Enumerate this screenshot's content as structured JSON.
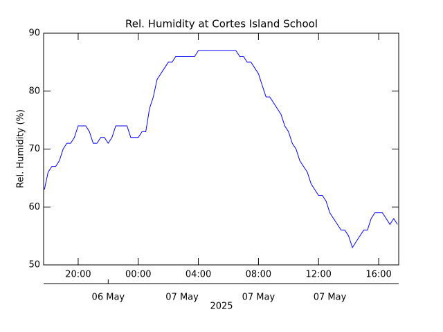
{
  "chart_data": {
    "type": "line",
    "title": "Rel. Humidity at Cortes Island School",
    "y_label": "Rel. Humidity (%)",
    "x_label": "2025",
    "x": [
      "2025-05-06 17:45",
      "2025-05-06 18:00",
      "2025-05-06 18:15",
      "2025-05-06 18:30",
      "2025-05-06 18:45",
      "2025-05-06 19:00",
      "2025-05-06 19:15",
      "2025-05-06 19:30",
      "2025-05-06 19:45",
      "2025-05-06 20:00",
      "2025-05-06 20:15",
      "2025-05-06 20:30",
      "2025-05-06 20:45",
      "2025-05-06 21:00",
      "2025-05-06 21:15",
      "2025-05-06 21:30",
      "2025-05-06 21:45",
      "2025-05-06 22:00",
      "2025-05-06 22:15",
      "2025-05-06 22:30",
      "2025-05-06 22:45",
      "2025-05-06 23:00",
      "2025-05-06 23:15",
      "2025-05-06 23:30",
      "2025-05-06 23:45",
      "2025-05-07 00:00",
      "2025-05-07 00:15",
      "2025-05-07 00:30",
      "2025-05-07 00:45",
      "2025-05-07 01:00",
      "2025-05-07 01:15",
      "2025-05-07 01:30",
      "2025-05-07 01:45",
      "2025-05-07 02:00",
      "2025-05-07 02:15",
      "2025-05-07 02:30",
      "2025-05-07 02:45",
      "2025-05-07 03:00",
      "2025-05-07 03:15",
      "2025-05-07 03:30",
      "2025-05-07 03:45",
      "2025-05-07 04:00",
      "2025-05-07 04:15",
      "2025-05-07 04:30",
      "2025-05-07 04:45",
      "2025-05-07 05:00",
      "2025-05-07 05:15",
      "2025-05-07 05:30",
      "2025-05-07 05:45",
      "2025-05-07 06:00",
      "2025-05-07 06:15",
      "2025-05-07 06:30",
      "2025-05-07 06:45",
      "2025-05-07 07:00",
      "2025-05-07 07:15",
      "2025-05-07 07:30",
      "2025-05-07 07:45",
      "2025-05-07 08:00",
      "2025-05-07 08:15",
      "2025-05-07 08:30",
      "2025-05-07 08:45",
      "2025-05-07 09:00",
      "2025-05-07 09:15",
      "2025-05-07 09:30",
      "2025-05-07 09:45",
      "2025-05-07 10:00",
      "2025-05-07 10:15",
      "2025-05-07 10:30",
      "2025-05-07 10:45",
      "2025-05-07 11:00",
      "2025-05-07 11:15",
      "2025-05-07 11:30",
      "2025-05-07 11:45",
      "2025-05-07 12:00",
      "2025-05-07 12:15",
      "2025-05-07 12:30",
      "2025-05-07 12:45",
      "2025-05-07 13:00",
      "2025-05-07 13:15",
      "2025-05-07 13:30",
      "2025-05-07 13:45",
      "2025-05-07 14:00",
      "2025-05-07 14:15",
      "2025-05-07 14:30",
      "2025-05-07 14:45",
      "2025-05-07 15:00",
      "2025-05-07 15:15",
      "2025-05-07 15:30",
      "2025-05-07 15:45",
      "2025-05-07 16:00",
      "2025-05-07 16:15",
      "2025-05-07 16:30",
      "2025-05-07 16:45",
      "2025-05-07 17:00",
      "2025-05-07 17:15"
    ],
    "series": [
      {
        "name": "Rel. Humidity",
        "color": "#0000ff",
        "values": [
          63,
          66,
          67,
          67,
          68,
          70,
          71,
          71,
          72,
          74,
          74,
          74,
          73,
          71,
          71,
          72,
          72,
          71,
          72,
          74,
          74,
          74,
          74,
          72,
          72,
          72,
          73,
          73,
          77,
          79,
          82,
          83,
          84,
          85,
          85,
          86,
          86,
          86,
          86,
          86,
          86,
          87,
          87,
          87,
          87,
          87,
          87,
          87,
          87,
          87,
          87,
          87,
          86,
          86,
          85,
          85,
          84,
          83,
          81,
          79,
          79,
          78,
          77,
          76,
          74,
          73,
          71,
          70,
          68,
          67,
          66,
          64,
          63,
          62,
          62,
          61,
          59,
          58,
          57,
          56,
          56,
          55,
          53,
          54,
          55,
          56,
          56,
          58,
          59,
          59,
          59,
          58,
          57,
          58,
          57
        ]
      }
    ],
    "xlim": [
      "2025-05-06 17:42",
      "2025-05-07 17:20"
    ],
    "xticks": [
      {
        "value": "2025-05-06 20:00",
        "label": "20:00"
      },
      {
        "value": "2025-05-07 00:00",
        "label": "00:00"
      },
      {
        "value": "2025-05-07 04:00",
        "label": "04:00"
      },
      {
        "value": "2025-05-07 08:00",
        "label": "08:00"
      },
      {
        "value": "2025-05-07 12:00",
        "label": "12:00"
      },
      {
        "value": "2025-05-07 16:00",
        "label": "16:00"
      }
    ],
    "x2ticks": [
      {
        "value": "2025-05-06 22:00",
        "label": "06 May"
      },
      {
        "value": "2025-05-07 02:55",
        "label": "07 May"
      },
      {
        "value": "2025-05-07 08:00",
        "label": "07 May"
      },
      {
        "value": "2025-05-07 12:45",
        "label": "07 May"
      }
    ],
    "ylim": [
      50,
      90
    ],
    "yticks": [
      50,
      60,
      70,
      80,
      90
    ]
  }
}
